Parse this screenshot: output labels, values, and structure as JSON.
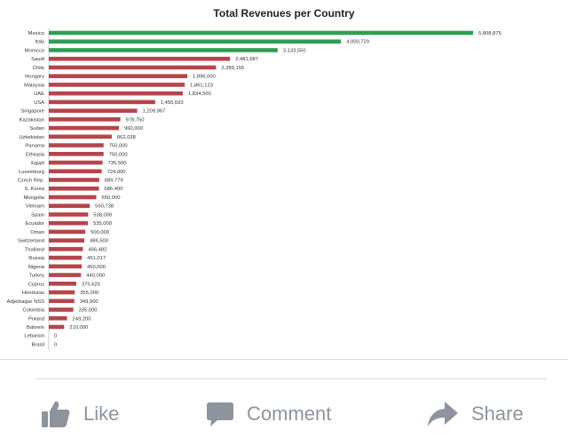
{
  "chart_data": {
    "type": "bar",
    "orientation": "horizontal",
    "title": "Total Revenues per Country",
    "categories": [
      "Mexico",
      "Italy",
      "Morocco",
      "Saudi",
      "Chile",
      "Hungary",
      "Malaysia",
      "UAE",
      "USA",
      "Singapore",
      "Kazakistan",
      "Sudan",
      "Uzbekistan",
      "Panama",
      "Ethiopia",
      "Egypt",
      "Luxemburg",
      "Czech Rep.",
      "S. Korea",
      "Mongolia",
      "Vietnam",
      "Spain",
      "Ecuador",
      "Oman",
      "Switzerland",
      "Thailand",
      "Russia",
      "Nigeria",
      "Turkey",
      "Cyprus",
      "Honduras",
      "Adjerbaijan NSS",
      "Colombia",
      "Poland",
      "Bahrein",
      "Lebanon",
      "Brasil"
    ],
    "values": [
      5808875,
      4000729,
      3133550,
      2481687,
      2289155,
      1896000,
      1861123,
      1834500,
      1455693,
      1209967,
      978750,
      960000,
      862038,
      750000,
      750000,
      735500,
      724000,
      689779,
      686400,
      650000,
      560738,
      538000,
      535000,
      500000,
      486500,
      466482,
      451017,
      450000,
      440000,
      375625,
      355000,
      349000,
      335000,
      249200,
      210000,
      0,
      0
    ],
    "value_labels": [
      "5,808,875",
      "4,000,729",
      "3,133,550",
      "2,481,687",
      "2,289,155",
      "1,896,000",
      "1,861,123",
      "1,834,500",
      "1,455,693",
      "1,209,967",
      "978,750",
      "960,000",
      "862,038",
      "750,000",
      "750,000",
      "735,500",
      "724,000",
      "689,779",
      "686,400",
      "650,000",
      "560,738",
      "538,000",
      "535,000",
      "500,000",
      "486,500",
      "466,482",
      "451,017",
      "450,000",
      "440,000",
      "375,625",
      "355,000",
      "349,000",
      "335,000",
      "249,200",
      "210,000",
      "0",
      "0"
    ],
    "highlight_count": 3,
    "colors": {
      "highlight": "#2e9e52",
      "default": "#b5454b"
    },
    "xlim": [
      0,
      5808875
    ],
    "legend": "none",
    "grid": false
  },
  "actions": {
    "like_label": "Like",
    "comment_label": "Comment",
    "share_label": "Share",
    "like_icon": "thumbs-up-icon",
    "comment_icon": "speech-bubble-icon",
    "share_icon": "share-arrow-icon",
    "icon_color": "#8d949e"
  }
}
